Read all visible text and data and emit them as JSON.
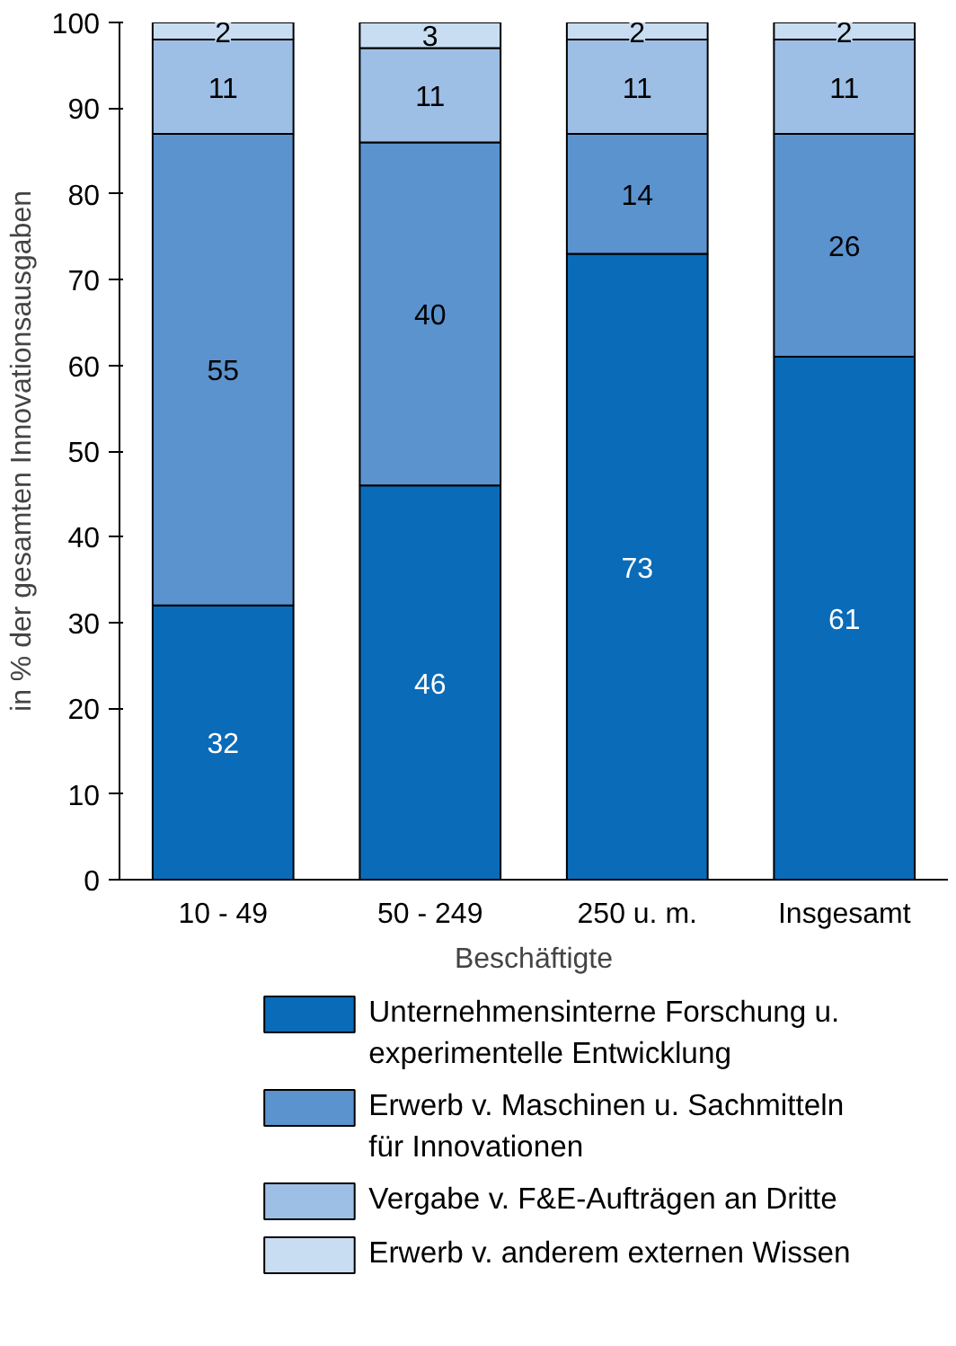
{
  "chart_data": {
    "type": "bar",
    "stacked": true,
    "xlabel": "Beschäftigte",
    "ylabel": "in % der gesamten Innovationsausgaben",
    "categories": [
      "10 - 49",
      "50 - 249",
      "250 u. m.",
      "Insgesamt"
    ],
    "ylim": [
      0,
      100
    ],
    "yticks": [
      0,
      10,
      20,
      30,
      40,
      50,
      60,
      70,
      80,
      90,
      100
    ],
    "grid": false,
    "legend": "bottom",
    "data_labels": true,
    "series": [
      {
        "name": "Unternehmensinterne Forschung u. experimentelle Entwicklung",
        "color": "#0a6bb8",
        "values": [
          32,
          46,
          73,
          61
        ]
      },
      {
        "name": "Erwerb v. Maschinen u. Sachmitteln für Innovationen",
        "color": "#5b93cf",
        "values": [
          55,
          40,
          14,
          26
        ]
      },
      {
        "name": "Vergabe v. F&E-Aufträgen an Dritte",
        "color": "#9dbfe6",
        "values": [
          11,
          11,
          11,
          11
        ]
      },
      {
        "name": "Erwerb v. anderem externen Wissen",
        "color": "#c8ddf2",
        "values": [
          2,
          3,
          2,
          2
        ]
      }
    ]
  }
}
